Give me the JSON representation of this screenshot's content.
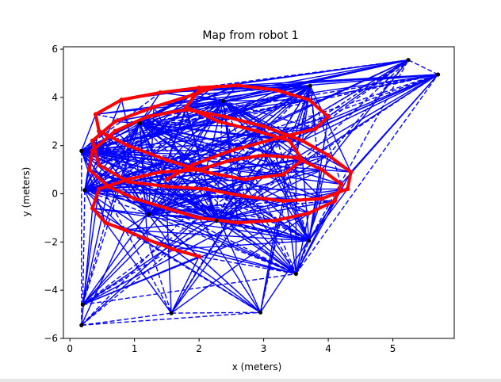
{
  "chart_data": {
    "type": "line",
    "title": "Map from robot 1",
    "xlabel": "x (meters)",
    "ylabel": "y (meters)",
    "xlim": [
      -0.1,
      5.95
    ],
    "ylim": [
      -6,
      6.1
    ],
    "xticks": [
      "0",
      "1",
      "2",
      "3",
      "4",
      "5"
    ],
    "yticks": [
      "−6",
      "−4",
      "−2",
      "0",
      "2",
      "4",
      "6"
    ],
    "grid": false,
    "legend": "none",
    "colors": {
      "landmark": "#000000",
      "edges": "#0000ff",
      "path": "#ff0000"
    },
    "series": [
      {
        "kind": "landmarks",
        "x": [
          0.18,
          0.23,
          0.2,
          0.18,
          1.08,
          1.22,
          1.57,
          2.27,
          2.37,
          2.95,
          3.5,
          3.7,
          3.72,
          5.24,
          5.7
        ],
        "y": [
          1.78,
          0.15,
          -4.6,
          -5.45,
          2.92,
          -0.85,
          -4.95,
          -1.12,
          3.85,
          -4.92,
          -3.32,
          -1.95,
          4.48,
          5.55,
          4.95
        ]
      },
      {
        "kind": "robot-path",
        "x": [
          2.0,
          1.6,
          1.2,
          0.85,
          0.55,
          0.35,
          0.45,
          0.9,
          1.4,
          2.0,
          2.5,
          3.0,
          3.5,
          3.9,
          4.2,
          4.1,
          3.7,
          3.2,
          2.6,
          2.0,
          1.5,
          1.0,
          0.6,
          0.3,
          0.35,
          0.7,
          1.2,
          1.8,
          2.4,
          3.0,
          3.6,
          4.0,
          4.35,
          4.3,
          3.9,
          3.3,
          2.7,
          2.1,
          1.5,
          0.9,
          0.45,
          0.35,
          0.7,
          1.3,
          1.9,
          2.2,
          2.0,
          1.8,
          2.3,
          2.9,
          3.4,
          3.6,
          3.3,
          2.7,
          2.1,
          1.5,
          0.9,
          0.45,
          0.4,
          0.8,
          1.4,
          2.0,
          2.6,
          3.2,
          3.7,
          4.0,
          3.8,
          3.2,
          2.5,
          1.9,
          1.5
        ],
        "y": [
          -2.6,
          -2.3,
          -1.9,
          -1.5,
          -1.2,
          -0.6,
          0.2,
          0.6,
          0.9,
          1.0,
          1.4,
          1.6,
          1.5,
          1.0,
          0.4,
          -0.3,
          -0.8,
          -1.1,
          -1.2,
          -1.0,
          -0.6,
          -0.2,
          0.3,
          1.0,
          1.8,
          2.6,
          3.2,
          3.5,
          3.2,
          2.8,
          2.2,
          1.6,
          0.9,
          0.2,
          -0.2,
          -0.3,
          -0.1,
          0.2,
          0.3,
          0.5,
          1.2,
          2.2,
          3.0,
          3.6,
          4.1,
          4.4,
          4.3,
          3.6,
          3.0,
          2.6,
          2.2,
          1.4,
          0.8,
          0.6,
          0.9,
          1.4,
          2.0,
          2.6,
          3.3,
          3.9,
          4.2,
          4.4,
          4.5,
          4.3,
          3.9,
          3.2,
          2.7,
          2.3,
          1.8,
          1.2,
          0.6
        ]
      }
    ]
  }
}
